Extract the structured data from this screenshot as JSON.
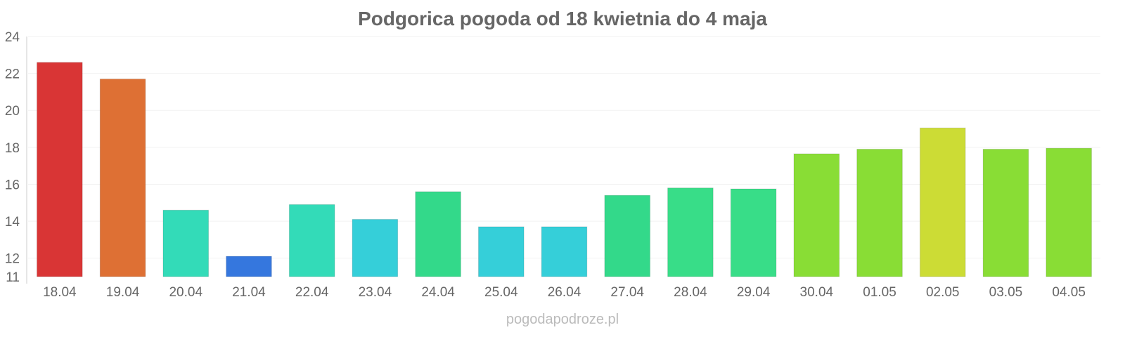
{
  "chart_data": {
    "type": "bar",
    "title": "Podgorica pogoda od 18 kwietnia do 4 maja",
    "categories": [
      "18.04",
      "19.04",
      "20.04",
      "21.04",
      "22.04",
      "23.04",
      "24.04",
      "25.04",
      "26.04",
      "27.04",
      "28.04",
      "29.04",
      "30.04",
      "01.05",
      "02.05",
      "03.05",
      "04.05"
    ],
    "values": [
      22.6,
      21.7,
      14.6,
      12.1,
      14.9,
      14.1,
      15.6,
      13.7,
      13.7,
      15.4,
      15.8,
      15.75,
      17.65,
      17.9,
      19.05,
      17.9,
      17.95
    ],
    "colors": [
      "#d93535",
      "#de7034",
      "#33dbb8",
      "#3577de",
      "#33dbb8",
      "#35cfd9",
      "#33d98a",
      "#35cfd9",
      "#35cfd9",
      "#33d98a",
      "#38dd88",
      "#38dd88",
      "#89dd35",
      "#89dd35",
      "#ccdc35",
      "#89dd35",
      "#89dd35"
    ],
    "yticks": [
      11,
      12,
      14,
      16,
      18,
      20,
      22,
      24
    ],
    "ylim": [
      11,
      24
    ],
    "xlabel": "",
    "ylabel": "",
    "grid": true
  },
  "watermark": "pogodapodroze.pl"
}
